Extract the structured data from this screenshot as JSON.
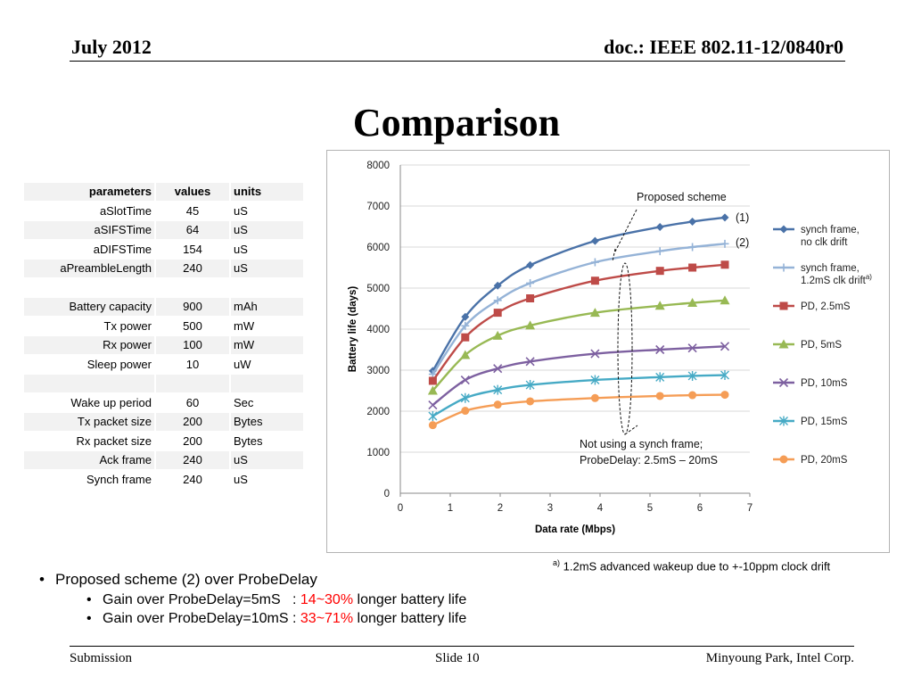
{
  "header": {
    "date": "July 2012",
    "doc": "doc.: IEEE 802.11-12/0840r0"
  },
  "slide_title": "Comparison",
  "table": {
    "headers": [
      "parameters",
      "values",
      "units"
    ],
    "rows": [
      [
        "aSlotTime",
        "45",
        "uS"
      ],
      [
        "aSIFSTime",
        "64",
        "uS"
      ],
      [
        "aDIFSTime",
        "154",
        "uS"
      ],
      [
        "aPreambleLength",
        "240",
        "uS"
      ],
      [
        "",
        "",
        ""
      ],
      [
        "Battery capacity",
        "900",
        "mAh"
      ],
      [
        "Tx power",
        "500",
        "mW"
      ],
      [
        "Rx power",
        "100",
        "mW"
      ],
      [
        "Sleep power",
        "10",
        "uW"
      ],
      [
        "",
        "",
        ""
      ],
      [
        "Wake up period",
        "60",
        "Sec"
      ],
      [
        "Tx packet size",
        "200",
        "Bytes"
      ],
      [
        "Rx packet size",
        "200",
        "Bytes"
      ],
      [
        "Ack frame",
        "240",
        "uS"
      ],
      [
        "Synch frame",
        "240",
        "uS"
      ]
    ]
  },
  "chart_data": {
    "type": "line",
    "xlabel": "Data rate (Mbps)",
    "ylabel": "Battery life (days)",
    "xlim": [
      0,
      7
    ],
    "ylim": [
      0,
      8000
    ],
    "xticks": [
      "0",
      "1",
      "2",
      "3",
      "4",
      "5",
      "6",
      "7"
    ],
    "yticks": [
      "0",
      "1000",
      "2000",
      "3000",
      "4000",
      "5000",
      "6000",
      "7000",
      "8000"
    ],
    "grid": "horizontal",
    "legend": "right",
    "x": [
      0.65,
      1.3,
      1.95,
      2.6,
      3.9,
      5.2,
      5.85,
      6.5
    ],
    "series": [
      {
        "name_lines": [
          "synch frame,",
          "no clk drift"
        ],
        "color": "#4a72a8",
        "marker": "diamond",
        "values": [
          2980,
          4300,
          5060,
          5560,
          6150,
          6490,
          6620,
          6720
        ]
      },
      {
        "name_lines": [
          "synch frame,",
          "1.2mS clk drift"
        ],
        "name_sup": "a)",
        "color": "#95b3d7",
        "marker": "plus",
        "values": [
          2900,
          4080,
          4700,
          5120,
          5630,
          5900,
          6000,
          6080
        ]
      },
      {
        "name_lines": [
          "PD, 2.5mS"
        ],
        "color": "#be4b48",
        "marker": "square",
        "values": [
          2740,
          3800,
          4400,
          4750,
          5180,
          5420,
          5500,
          5570
        ]
      },
      {
        "name_lines": [
          "PD, 5mS"
        ],
        "color": "#98b954",
        "marker": "triangle",
        "values": [
          2500,
          3370,
          3840,
          4090,
          4400,
          4570,
          4640,
          4700
        ]
      },
      {
        "name_lines": [
          "PD, 10mS"
        ],
        "color": "#7d60a0",
        "marker": "x",
        "values": [
          2150,
          2760,
          3040,
          3210,
          3400,
          3500,
          3540,
          3580
        ]
      },
      {
        "name_lines": [
          "PD, 15mS"
        ],
        "color": "#46aac5",
        "marker": "star",
        "values": [
          1880,
          2320,
          2520,
          2640,
          2760,
          2830,
          2860,
          2880
        ]
      },
      {
        "name_lines": [
          "PD, 20mS"
        ],
        "color": "#f59d56",
        "marker": "circle",
        "values": [
          1660,
          2010,
          2160,
          2240,
          2320,
          2370,
          2390,
          2400
        ]
      }
    ],
    "annotations": {
      "proposed": "Proposed scheme",
      "label1": "(1)",
      "label2": "(2)",
      "not_synch_line1": "Not using a synch frame;",
      "not_synch_line2": "ProbeDelay: 2.5mS – 20mS"
    }
  },
  "footnote": {
    "sup": "a)",
    "text": "1.2mS advanced wakeup due to +-10ppm clock drift"
  },
  "bullets": {
    "main": "Proposed scheme (2) over ProbeDelay",
    "sub1_pre": "Gain over ProbeDelay=5mS   : ",
    "sub1_red": "14~30%",
    "sub1_post": " longer battery life",
    "sub2_pre": "Gain over ProbeDelay=10mS : ",
    "sub2_red": "33~71%",
    "sub2_post": " longer battery life"
  },
  "footer": {
    "left": "Submission",
    "center": "Slide 10",
    "right": "Minyoung Park, Intel Corp."
  }
}
